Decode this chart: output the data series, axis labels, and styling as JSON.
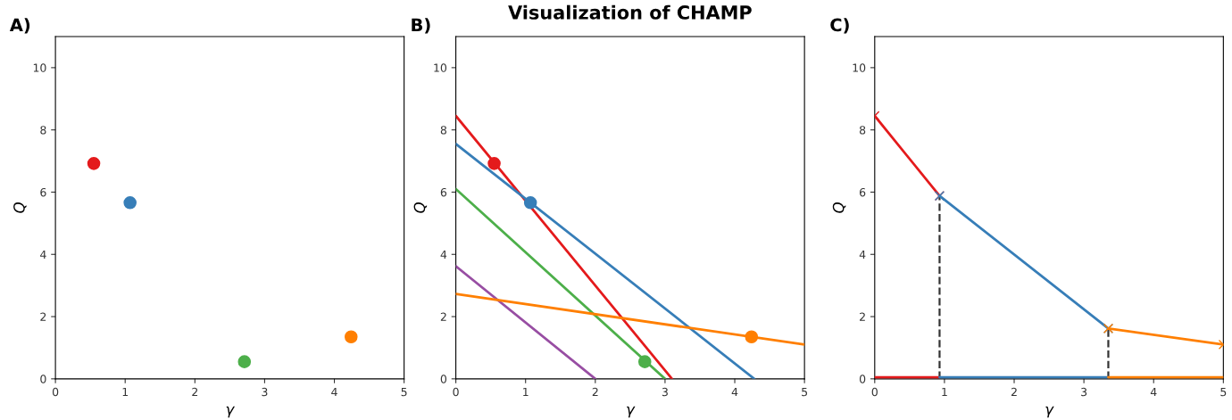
{
  "chart_data": [
    {
      "type": "scatter",
      "annotations": [
        "A)"
      ],
      "xlabel": "γ",
      "ylabel": "Q",
      "xlim": [
        0,
        5
      ],
      "ylim": [
        0,
        11
      ],
      "xticks": [
        0,
        1,
        2,
        3,
        4,
        5
      ],
      "yticks": [
        0,
        2,
        4,
        6,
        8,
        10
      ],
      "grid": false,
      "marker": "circle",
      "series": [
        {
          "color": "#e41a1c",
          "x": [
            0.55
          ],
          "values": [
            6.92
          ]
        },
        {
          "color": "#377eb8",
          "x": [
            1.07
          ],
          "values": [
            5.66
          ]
        },
        {
          "color": "#4daf4a",
          "x": [
            2.71
          ],
          "values": [
            0.55
          ]
        },
        {
          "color": "#ff7f00",
          "x": [
            4.24
          ],
          "values": [
            1.35
          ]
        }
      ]
    },
    {
      "type": "line",
      "title": "Visualization of CHAMP",
      "annotations": [
        "B)"
      ],
      "xlabel": "γ",
      "ylabel": "Q",
      "xlim": [
        0,
        5
      ],
      "ylim": [
        0,
        11
      ],
      "xticks": [
        0,
        1,
        2,
        3,
        4,
        5
      ],
      "yticks": [
        0,
        2,
        4,
        6,
        8,
        10
      ],
      "grid": false,
      "series": [
        {
          "color": "#984ea3",
          "x": [
            0,
            2.0
          ],
          "values": [
            3.62,
            0
          ]
        },
        {
          "color": "#4daf4a",
          "x": [
            0,
            3.0
          ],
          "values": [
            6.1,
            0
          ]
        },
        {
          "color": "#e41a1c",
          "x": [
            0,
            3.1
          ],
          "values": [
            8.45,
            0
          ]
        },
        {
          "color": "#377eb8",
          "x": [
            0,
            4.28
          ],
          "values": [
            7.55,
            0
          ]
        },
        {
          "color": "#ff7f00",
          "x": [
            0,
            5
          ],
          "values": [
            2.73,
            1.1
          ]
        },
        {
          "type": "scatter",
          "marker": "circle",
          "color": "#e41a1c",
          "x": [
            0.55
          ],
          "values": [
            6.92
          ]
        },
        {
          "type": "scatter",
          "marker": "circle",
          "color": "#377eb8",
          "x": [
            1.07
          ],
          "values": [
            5.66
          ]
        },
        {
          "type": "scatter",
          "marker": "circle",
          "color": "#4daf4a",
          "x": [
            2.71
          ],
          "values": [
            0.55
          ]
        },
        {
          "type": "scatter",
          "marker": "circle",
          "color": "#ff7f00",
          "x": [
            4.24
          ],
          "values": [
            1.35
          ]
        }
      ]
    },
    {
      "type": "line",
      "annotations": [
        "C)"
      ],
      "xlabel": "γ",
      "ylabel": "Q",
      "xlim": [
        0,
        5
      ],
      "ylim": [
        0,
        11
      ],
      "xticks": [
        0,
        1,
        2,
        3,
        4,
        5
      ],
      "yticks": [
        0,
        2,
        4,
        6,
        8,
        10
      ],
      "grid": false,
      "series": [
        {
          "color": "#e41a1c",
          "marker": "cross",
          "x": [
            0,
            0.93
          ],
          "values": [
            8.45,
            5.88
          ]
        },
        {
          "color": "#377eb8",
          "marker": "cross",
          "x": [
            0.93,
            3.35
          ],
          "values": [
            5.88,
            1.62
          ]
        },
        {
          "color": "#ff7f00",
          "marker": "cross",
          "x": [
            3.35,
            5
          ],
          "values": [
            1.62,
            1.1
          ]
        },
        {
          "color": "#333333",
          "line_style": "dashed",
          "x": [
            0.93,
            0.93
          ],
          "values": [
            0,
            5.88
          ]
        },
        {
          "color": "#333333",
          "line_style": "dashed",
          "x": [
            3.35,
            3.35
          ],
          "values": [
            0,
            1.62
          ]
        },
        {
          "color": "#e41a1c",
          "x": [
            0,
            0.93
          ],
          "values": [
            0.05,
            0.05
          ]
        },
        {
          "color": "#377eb8",
          "x": [
            0.93,
            3.35
          ],
          "values": [
            0.05,
            0.05
          ]
        },
        {
          "color": "#ff7f00",
          "x": [
            3.35,
            5
          ],
          "values": [
            0.05,
            0.05
          ]
        }
      ]
    }
  ]
}
